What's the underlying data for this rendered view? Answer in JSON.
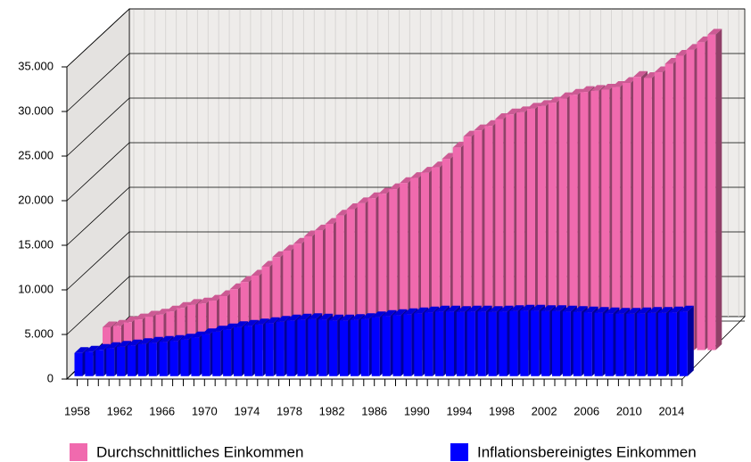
{
  "chart_data": {
    "type": "bar3d",
    "categories": [
      "1958",
      null,
      null,
      null,
      "1962",
      null,
      null,
      null,
      "1966",
      null,
      null,
      null,
      "1970",
      null,
      null,
      null,
      "1974",
      null,
      null,
      null,
      "1978",
      null,
      null,
      null,
      "1982",
      null,
      null,
      null,
      "1986",
      null,
      null,
      null,
      "1990",
      null,
      null,
      null,
      "1994",
      null,
      null,
      null,
      "1998",
      null,
      null,
      null,
      "2002",
      null,
      null,
      null,
      "2006",
      null,
      null,
      null,
      "2010",
      null,
      null,
      null,
      "2014",
      null
    ],
    "series": [
      {
        "name": "Durchschnittliches Einkommen",
        "color": "#f06aae",
        "values": [
          2549,
          2722,
          3119,
          3437,
          3747,
          3975,
          4329,
          4719,
          5058,
          5225,
          5543,
          6053,
          6822,
          7634,
          8352,
          9354,
          10421,
          11150,
          11931,
          12754,
          13417,
          14155,
          15075,
          15799,
          16463,
          17022,
          17533,
          18041,
          18727,
          19289,
          19887,
          20484,
          21447,
          22712,
          23939,
          24633,
          25126,
          25904,
          26422,
          26660,
          27060,
          27358,
          27741,
          28232,
          28626,
          28938,
          29060,
          29202,
          29494,
          29951,
          30625,
          30506,
          31144,
          32100,
          33002,
          33659,
          34514,
          35363
        ]
      },
      {
        "name": "Inflationsbereinigtes Einkommen",
        "color": "#0000ff",
        "values": [
          2600,
          2750,
          2950,
          3150,
          3300,
          3450,
          3600,
          3750,
          3850,
          3950,
          4100,
          4350,
          4700,
          5000,
          5250,
          5500,
          5650,
          5800,
          5950,
          6100,
          6250,
          6350,
          6400,
          6350,
          6250,
          6250,
          6300,
          6400,
          6600,
          6750,
          6850,
          6950,
          7050,
          7150,
          7250,
          7250,
          7200,
          7250,
          7250,
          7200,
          7250,
          7300,
          7350,
          7350,
          7300,
          7300,
          7250,
          7200,
          7150,
          7100,
          7050,
          7000,
          7000,
          7050,
          7100,
          7100,
          7150,
          7250
        ]
      }
    ],
    "ylim": [
      0,
      35000
    ],
    "yticks": [
      0,
      {
        "value": 5000,
        "label": "5.000"
      },
      {
        "value": 10000,
        "label": "10.000"
      },
      {
        "value": 15000,
        "label": "15.000"
      },
      {
        "value": 20000,
        "label": "20.000"
      },
      {
        "value": 25000,
        "label": "25.000"
      },
      {
        "value": 30000,
        "label": "30.000"
      },
      {
        "value": 35000,
        "label": "35.000"
      }
    ],
    "grid": true
  }
}
